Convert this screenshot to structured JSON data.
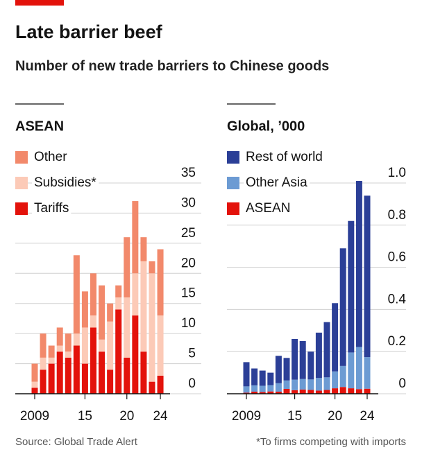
{
  "header": {
    "title": "Late barrier beef",
    "subtitle": "Number of new trade barriers to Chinese goods"
  },
  "footer": {
    "source": "Source: Global Trade Alert",
    "note": "*To firms competing with imports"
  },
  "chart_data": [
    {
      "type": "stacked-bar",
      "title": "ASEAN",
      "x": [
        2009,
        2010,
        2011,
        2012,
        2013,
        2014,
        2015,
        2016,
        2017,
        2018,
        2019,
        2020,
        2021,
        2022,
        2023,
        2024
      ],
      "xticks": [
        2009,
        {
          "value": 2015,
          "label": "15"
        },
        {
          "value": 2020,
          "label": "20"
        },
        {
          "value": 2024,
          "label": "24"
        }
      ],
      "ylim": [
        0,
        35
      ],
      "yticks": [
        0,
        5,
        10,
        15,
        20,
        25,
        30,
        35
      ],
      "grid": true,
      "legend": "top-left",
      "series": [
        {
          "name": "Other",
          "color": "#f2896b",
          "values": [
            3,
            4,
            2,
            3,
            3,
            13,
            6,
            7,
            9,
            3,
            2,
            10,
            12,
            4,
            2,
            11
          ]
        },
        {
          "name": "Subsidies*",
          "color": "#fccab7",
          "values": [
            1,
            2,
            1,
            1,
            1,
            2,
            6,
            2,
            2,
            8,
            2,
            10,
            7,
            15,
            18,
            10
          ]
        },
        {
          "name": "Tariffs",
          "color": "#e3120b",
          "values": [
            1,
            4,
            5,
            7,
            6,
            8,
            5,
            11,
            7,
            4,
            14,
            6,
            13,
            7,
            2,
            3
          ]
        }
      ]
    },
    {
      "type": "stacked-bar",
      "title": "Global, ’000",
      "x": [
        2009,
        2010,
        2011,
        2012,
        2013,
        2014,
        2015,
        2016,
        2017,
        2018,
        2019,
        2020,
        2021,
        2022,
        2023,
        2024
      ],
      "xticks": [
        2009,
        {
          "value": 2015,
          "label": "15"
        },
        {
          "value": 2020,
          "label": "20"
        },
        {
          "value": 2024,
          "label": "24"
        }
      ],
      "ylim": [
        0,
        1
      ],
      "yticks": [
        0,
        0.2,
        0.4,
        0.6,
        0.8,
        {
          "value": 1,
          "label": "1.0"
        }
      ],
      "grid": true,
      "legend": "top-left",
      "series": [
        {
          "name": "Rest of world",
          "color": "#2b3f97",
          "values": [
            0.115,
            0.08,
            0.072,
            0.059,
            0.13,
            0.107,
            0.193,
            0.18,
            0.132,
            0.215,
            0.262,
            0.324,
            0.558,
            0.624,
            0.788,
            0.766
          ]
        },
        {
          "name": "Other Asia",
          "color": "#6c9bd3",
          "values": [
            0.03,
            0.03,
            0.03,
            0.03,
            0.04,
            0.04,
            0.05,
            0.05,
            0.05,
            0.06,
            0.06,
            0.08,
            0.1,
            0.17,
            0.2,
            0.15
          ]
        },
        {
          "name": "ASEAN",
          "color": "#e3120b",
          "values": [
            0.005,
            0.01,
            0.008,
            0.011,
            0.01,
            0.023,
            0.017,
            0.02,
            0.018,
            0.015,
            0.018,
            0.026,
            0.032,
            0.026,
            0.022,
            0.024
          ]
        }
      ]
    }
  ]
}
